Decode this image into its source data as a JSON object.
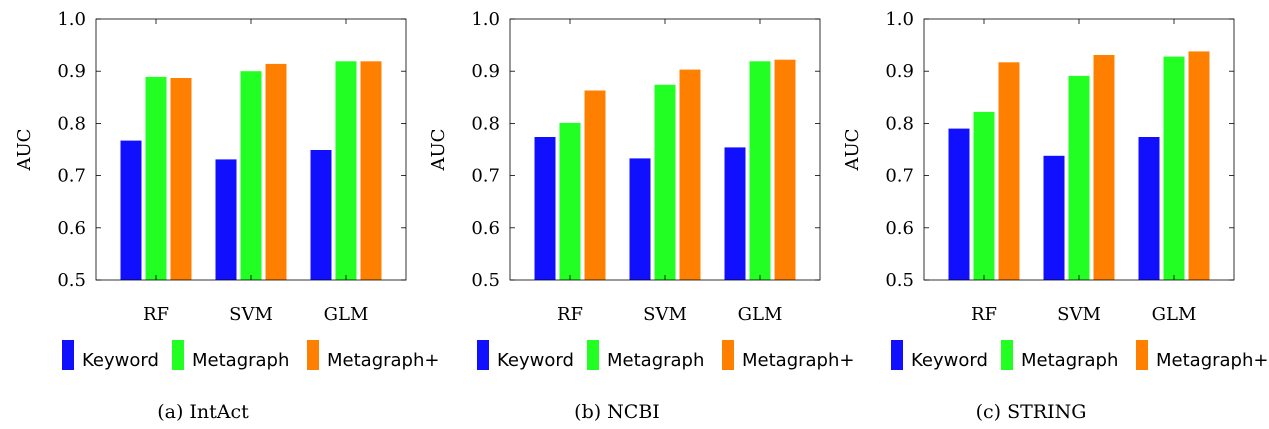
{
  "figure": {
    "legend": [
      {
        "label": "Keyword",
        "color": "#1010ff"
      },
      {
        "label": "Metagraph",
        "color": "#22ff22"
      },
      {
        "label": "Metagraph+",
        "color": "#ff8000"
      }
    ]
  },
  "chart_data": [
    {
      "type": "bar",
      "caption": "(a) IntAct",
      "ylabel": "AUC",
      "ylim": [
        0.5,
        1.0
      ],
      "yticks": [
        "0.5",
        "0.6",
        "0.7",
        "0.8",
        "0.9",
        "1.0"
      ],
      "categories": [
        "RF",
        "SVM",
        "GLM"
      ],
      "series": [
        {
          "name": "Keyword",
          "values": [
            0.767,
            0.731,
            0.749
          ]
        },
        {
          "name": "Metagraph",
          "values": [
            0.889,
            0.9,
            0.919
          ]
        },
        {
          "name": "Metagraph+",
          "values": [
            0.887,
            0.914,
            0.919
          ]
        }
      ],
      "legend_position": "bottom",
      "grid": false
    },
    {
      "type": "bar",
      "caption": "(b) NCBI",
      "ylabel": "AUC",
      "ylim": [
        0.5,
        1.0
      ],
      "yticks": [
        "0.5",
        "0.6",
        "0.7",
        "0.8",
        "0.9",
        "1.0"
      ],
      "categories": [
        "RF",
        "SVM",
        "GLM"
      ],
      "series": [
        {
          "name": "Keyword",
          "values": [
            0.774,
            0.733,
            0.754
          ]
        },
        {
          "name": "Metagraph",
          "values": [
            0.801,
            0.874,
            0.919
          ]
        },
        {
          "name": "Metagraph+",
          "values": [
            0.863,
            0.903,
            0.922
          ]
        }
      ],
      "legend_position": "bottom",
      "grid": false
    },
    {
      "type": "bar",
      "caption": "(c) STRING",
      "ylabel": "AUC",
      "ylim": [
        0.5,
        1.0
      ],
      "yticks": [
        "0.5",
        "0.6",
        "0.7",
        "0.8",
        "0.9",
        "1.0"
      ],
      "categories": [
        "RF",
        "SVM",
        "GLM"
      ],
      "series": [
        {
          "name": "Keyword",
          "values": [
            0.79,
            0.738,
            0.774
          ]
        },
        {
          "name": "Metagraph",
          "values": [
            0.822,
            0.891,
            0.928
          ]
        },
        {
          "name": "Metagraph+",
          "values": [
            0.917,
            0.931,
            0.938
          ]
        }
      ],
      "legend_position": "bottom",
      "grid": false
    }
  ]
}
